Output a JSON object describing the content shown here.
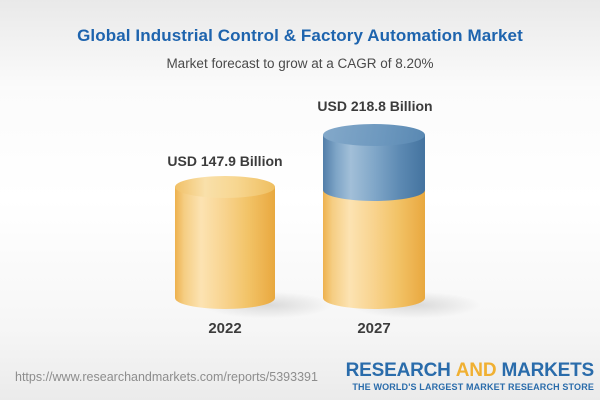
{
  "header": {
    "title": "Global Industrial Control & Factory Automation Market",
    "subtitle": "Market forecast to grow at a CAGR of 8.20%"
  },
  "chart_data": {
    "type": "bar",
    "variant": "3d-cylinder",
    "title": "Global Industrial Control & Factory Automation Market",
    "subtitle": "Market forecast to grow at a CAGR of 8.20%",
    "cagr_percent": 8.2,
    "unit": "USD Billion",
    "categories": [
      "2022",
      "2027"
    ],
    "values": [
      147.9,
      218.8
    ],
    "value_labels": [
      "USD 147.9 Billion",
      "USD 218.8 Billion"
    ],
    "segments_2027": {
      "base_gold": 147.9,
      "growth_blue": 70.9
    },
    "legend": "none",
    "axes": "none",
    "colors": {
      "gold_bar": "#F2C367",
      "blue_bar": "#5D8AB3",
      "title_text": "#1E64AE",
      "label_text": "#3C3C3C"
    }
  },
  "footer": {
    "source_url": "https://www.researchandmarkets.com/reports/5393391",
    "logo": {
      "word1": "RESEARCH",
      "word2": "AND",
      "word3": "MARKETS",
      "tagline": "THE WORLD'S LARGEST MARKET RESEARCH STORE"
    }
  }
}
